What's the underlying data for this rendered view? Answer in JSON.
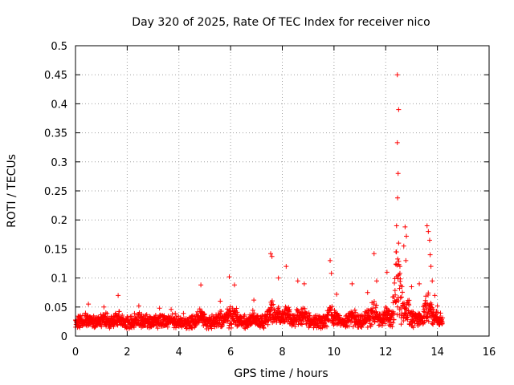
{
  "chart_data": {
    "type": "scatter",
    "title": "Day 320 of 2025, Rate Of TEC Index for receiver nico",
    "xlabel": "GPS time / hours",
    "ylabel": "ROTI / TECUs",
    "xlim": [
      0,
      16
    ],
    "ylim": [
      0,
      0.5
    ],
    "x_ticks": [
      0,
      2,
      4,
      6,
      8,
      10,
      12,
      14,
      16
    ],
    "x_tick_labels": [
      "0",
      "2",
      "4",
      "6",
      "8",
      "10",
      "12",
      "14",
      "16"
    ],
    "y_ticks": [
      0,
      0.05,
      0.1,
      0.15,
      0.2,
      0.25,
      0.3,
      0.35,
      0.4,
      0.45,
      0.5
    ],
    "y_tick_labels": [
      "0",
      "0.05",
      "0.1",
      "0.15",
      "0.2",
      "0.25",
      "0.3",
      "0.35",
      "0.4",
      "0.45",
      "0.5"
    ],
    "grid": true,
    "marker": "+",
    "color": "#ff0000",
    "series": [
      {
        "name": "ROTI",
        "x_start": 0.0,
        "x_end": 14.2,
        "baseline_values": [
          0.022,
          0.02,
          0.025,
          0.018,
          0.03,
          0.021,
          0.027,
          0.019,
          0.024,
          0.033,
          0.02,
          0.026,
          0.018,
          0.029,
          0.023,
          0.031,
          0.019,
          0.025,
          0.022,
          0.028
        ],
        "peaks": [
          {
            "x": 0.5,
            "y": 0.055
          },
          {
            "x": 1.1,
            "y": 0.05
          },
          {
            "x": 1.65,
            "y": 0.07
          },
          {
            "x": 2.45,
            "y": 0.052
          },
          {
            "x": 3.25,
            "y": 0.048
          },
          {
            "x": 3.7,
            "y": 0.046
          },
          {
            "x": 4.85,
            "y": 0.088
          },
          {
            "x": 5.6,
            "y": 0.06
          },
          {
            "x": 5.95,
            "y": 0.102
          },
          {
            "x": 6.15,
            "y": 0.088
          },
          {
            "x": 6.9,
            "y": 0.062
          },
          {
            "x": 7.55,
            "y": 0.142
          },
          {
            "x": 7.6,
            "y": 0.137
          },
          {
            "x": 7.85,
            "y": 0.1
          },
          {
            "x": 8.15,
            "y": 0.12
          },
          {
            "x": 8.6,
            "y": 0.095
          },
          {
            "x": 8.85,
            "y": 0.09
          },
          {
            "x": 9.85,
            "y": 0.13
          },
          {
            "x": 9.9,
            "y": 0.108
          },
          {
            "x": 10.1,
            "y": 0.072
          },
          {
            "x": 10.7,
            "y": 0.09
          },
          {
            "x": 11.3,
            "y": 0.075
          },
          {
            "x": 11.55,
            "y": 0.142
          },
          {
            "x": 11.65,
            "y": 0.095
          },
          {
            "x": 12.05,
            "y": 0.11
          },
          {
            "x": 12.45,
            "y": 0.45
          },
          {
            "x": 12.5,
            "y": 0.39
          },
          {
            "x": 12.45,
            "y": 0.333
          },
          {
            "x": 12.48,
            "y": 0.28
          },
          {
            "x": 12.46,
            "y": 0.238
          },
          {
            "x": 12.42,
            "y": 0.19
          },
          {
            "x": 12.5,
            "y": 0.16
          },
          {
            "x": 12.4,
            "y": 0.145
          },
          {
            "x": 12.55,
            "y": 0.12
          },
          {
            "x": 12.75,
            "y": 0.188
          },
          {
            "x": 12.8,
            "y": 0.172
          },
          {
            "x": 12.7,
            "y": 0.155
          },
          {
            "x": 12.78,
            "y": 0.13
          },
          {
            "x": 13.0,
            "y": 0.085
          },
          {
            "x": 13.3,
            "y": 0.09
          },
          {
            "x": 13.6,
            "y": 0.19
          },
          {
            "x": 13.65,
            "y": 0.18
          },
          {
            "x": 13.7,
            "y": 0.165
          },
          {
            "x": 13.72,
            "y": 0.14
          },
          {
            "x": 13.75,
            "y": 0.12
          },
          {
            "x": 13.8,
            "y": 0.095
          },
          {
            "x": 13.9,
            "y": 0.07
          },
          {
            "x": 14.0,
            "y": 0.052
          }
        ]
      }
    ]
  }
}
